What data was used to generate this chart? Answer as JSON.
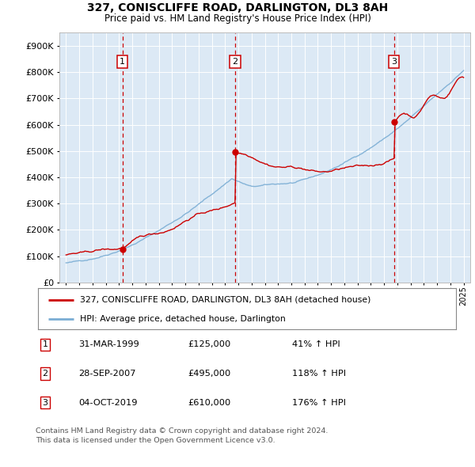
{
  "title": "327, CONISCLIFFE ROAD, DARLINGTON, DL3 8AH",
  "subtitle": "Price paid vs. HM Land Registry's House Price Index (HPI)",
  "background_color": "#ffffff",
  "plot_bg_color": "#dce9f5",
  "legend_label_red": "327, CONISCLIFFE ROAD, DARLINGTON, DL3 8AH (detached house)",
  "legend_label_blue": "HPI: Average price, detached house, Darlington",
  "footer": "Contains HM Land Registry data © Crown copyright and database right 2024.\nThis data is licensed under the Open Government Licence v3.0.",
  "sale_points": [
    {
      "num": 1,
      "date": "31-MAR-1999",
      "x": 1999.25,
      "price": 125000,
      "pct": "41%"
    },
    {
      "num": 2,
      "date": "28-SEP-2007",
      "x": 2007.75,
      "price": 495000,
      "pct": "118%"
    },
    {
      "num": 3,
      "date": "04-OCT-2019",
      "x": 2019.75,
      "price": 610000,
      "pct": "176%"
    }
  ],
  "hpi_color": "#7aadd4",
  "price_color": "#cc0000",
  "dashed_color": "#cc0000",
  "ylim_max": 950000,
  "yticks": [
    0,
    100000,
    200000,
    300000,
    400000,
    500000,
    600000,
    700000,
    800000,
    900000
  ],
  "xlim_min": 1994.5,
  "xlim_max": 2025.5
}
